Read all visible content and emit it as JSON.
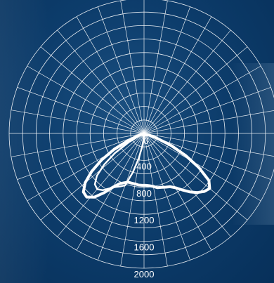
{
  "chart_data": {
    "type": "polar",
    "title": "",
    "radial_axis": {
      "range": [
        0,
        2000
      ],
      "ticks": [
        "0",
        "400",
        "800",
        "1200",
        "1600",
        "2000"
      ],
      "grid_step": 200
    },
    "angular_grid_step_deg": 10,
    "grid": true,
    "colors": {
      "grid": "#ffffff",
      "curve": "#ffffff",
      "background": "#0d3d6c"
    },
    "series": [
      {
        "angles_deg": [
          -72,
          -70,
          -66,
          -62,
          -58,
          -54,
          -50,
          -46,
          -42,
          -38,
          -34,
          -30,
          -26,
          -22,
          -18,
          -14,
          -10,
          -6,
          -2,
          0,
          2,
          6,
          10,
          14,
          18,
          22,
          26,
          30,
          34,
          38,
          42,
          46,
          50,
          54,
          58,
          62,
          66,
          70,
          72
        ],
        "values": [
          50,
          80,
          250,
          500,
          740,
          960,
          1140,
          1250,
          1270,
          1200,
          1060,
          920,
          830,
          790,
          760,
          760,
          760,
          770,
          770,
          770,
          770,
          780,
          800,
          830,
          840,
          860,
          880,
          930,
          1010,
          1100,
          1180,
          1240,
          1270,
          1190,
          960,
          700,
          440,
          200,
          80
        ]
      },
      {
        "angles_deg": [
          -64,
          -60,
          -56,
          -52,
          -48,
          -44,
          -40,
          -36,
          -32,
          -28,
          -24,
          -20,
          -16,
          -12,
          -8,
          -4,
          0
        ],
        "values": [
          50,
          260,
          520,
          750,
          940,
          1050,
          1080,
          1040,
          960,
          900,
          860,
          820,
          600,
          380,
          200,
          80,
          20
        ]
      }
    ]
  }
}
